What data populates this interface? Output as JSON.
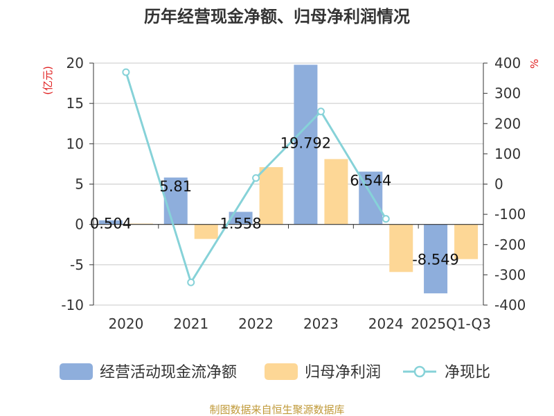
{
  "title": "历年经营现金净额、归母净利润情况",
  "source": "制图数据来自恒生聚源数据库",
  "colors": {
    "cash": "#8eaedc",
    "profit": "#fdd796",
    "ratio": "#86d2d8",
    "unit": "#e02020"
  },
  "chart_data": {
    "type": "bar",
    "title": "历年经营现金净额、归母净利润情况",
    "categories": [
      "2020",
      "2021",
      "2022",
      "2023",
      "2024",
      "2025Q1-Q3"
    ],
    "series": [
      {
        "name": "经营活动现金流净额",
        "type": "bar",
        "axis": "left",
        "values": [
          0.504,
          5.81,
          1.558,
          19.792,
          6.544,
          -8.549
        ],
        "labels": [
          "0.504",
          "5.81",
          "1.558",
          "19.792",
          "6.544",
          "-8.549"
        ]
      },
      {
        "name": "归母净利润",
        "type": "bar",
        "axis": "left",
        "values": [
          0.1,
          -1.8,
          7.1,
          8.1,
          -5.9,
          -4.3
        ]
      },
      {
        "name": "净现比",
        "type": "line",
        "axis": "right",
        "values": [
          370,
          -325,
          20,
          240,
          -115,
          null
        ]
      }
    ],
    "ylabel": "(亿元)",
    "ylim": [
      -10,
      20
    ],
    "yticks": [
      -10,
      -5,
      0,
      5,
      10,
      15,
      20
    ],
    "y2label": "%",
    "y2lim": [
      -400,
      400
    ],
    "y2ticks": [
      -400,
      -300,
      -200,
      -100,
      0,
      100,
      200,
      300,
      400
    ],
    "legend_position": "bottom"
  }
}
